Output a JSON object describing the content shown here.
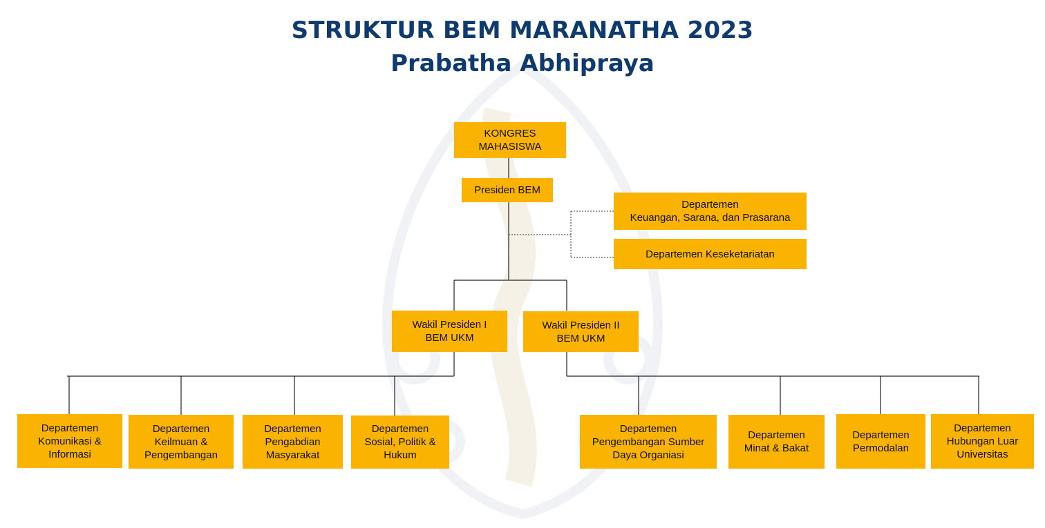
{
  "header": {
    "title": "STRUKTUR BEM MARANATHA 2023",
    "subtitle": "Prabatha Abhipraya"
  },
  "colors": {
    "box_fill": "#f9b300",
    "title_color": "#0f3a6e",
    "line_color": "#222222"
  },
  "nodes": {
    "kongres": "KONGRES\nMAHASISWA",
    "presiden": "Presiden BEM",
    "keuangan": "Departemen\nKeuangan, Sarana, dan Prasarana",
    "kesekretariatan": "Departemen Keseketariatan",
    "wapres1": "Wakil Presiden I\nBEM UKM",
    "wapres2": "Wakil Presiden II\nBEM UKM",
    "kominfo": "Departemen\nKomunikasi &\nInformasi",
    "keilmuan": "Departemen\nKeilmuan &\nPengembangan",
    "pengabdian": "Departemen\nPengabdian\nMasyarakat",
    "sospolhuk": "Departemen\nSosial, Politik &\nHukum",
    "psdo": "Departemen\nPengembangan Sumber\nDaya Organiasi",
    "minat": "Departemen\nMinat & Bakat",
    "permodalan": "Departemen\nPermodalan",
    "hublu": "Departemen\nHubungan Luar\nUniversitas"
  }
}
